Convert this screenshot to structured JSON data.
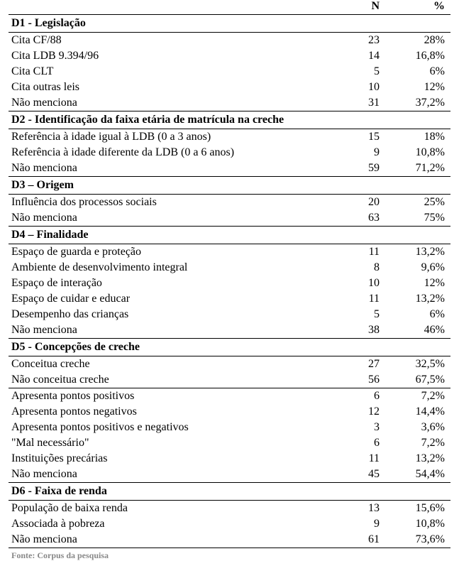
{
  "header": {
    "n_label": "N",
    "pct_label": "%"
  },
  "sections": [
    {
      "title": "D1 - Legislação",
      "groups": [
        {
          "rows": [
            {
              "label": "Cita CF/88",
              "n": "23",
              "pct": "28%"
            },
            {
              "label": "Cita LDB 9.394/96",
              "n": "14",
              "pct": "16,8%"
            },
            {
              "label": "Cita CLT",
              "n": "5",
              "pct": "6%"
            },
            {
              "label": "Cita outras leis",
              "n": "10",
              "pct": "12%"
            },
            {
              "label": "Não menciona",
              "n": "31",
              "pct": "37,2%"
            }
          ]
        }
      ]
    },
    {
      "title": "D2 - Identificação da faixa etária de matrícula na creche",
      "groups": [
        {
          "rows": [
            {
              "label": "Referência à idade igual à LDB (0 a 3 anos)",
              "n": "15",
              "pct": "18%"
            },
            {
              "label": "Referência à idade diferente da LDB (0 a 6 anos)",
              "n": "9",
              "pct": "10,8%"
            },
            {
              "label": "Não menciona",
              "n": "59",
              "pct": "71,2%"
            }
          ]
        }
      ]
    },
    {
      "title": "D3 – Origem",
      "groups": [
        {
          "rows": [
            {
              "label": "Influência dos processos sociais",
              "n": "20",
              "pct": "25%"
            },
            {
              "label": "Não menciona",
              "n": "63",
              "pct": "75%"
            }
          ]
        }
      ]
    },
    {
      "title": "D4 – Finalidade",
      "groups": [
        {
          "rows": [
            {
              "label": "Espaço de guarda e proteção",
              "n": "11",
              "pct": "13,2%"
            },
            {
              "label": "Ambiente de desenvolvimento integral",
              "n": "8",
              "pct": "9,6%"
            },
            {
              "label": "Espaço de interação",
              "n": "10",
              "pct": "12%"
            },
            {
              "label": "Espaço de cuidar e educar",
              "n": "11",
              "pct": "13,2%"
            },
            {
              "label": "Desempenho das crianças",
              "n": "5",
              "pct": "6%"
            },
            {
              "label": "Não menciona",
              "n": "38",
              "pct": "46%"
            }
          ]
        }
      ]
    },
    {
      "title": "D5 - Concepções de creche",
      "groups": [
        {
          "rows": [
            {
              "label": "Conceitua creche",
              "n": "27",
              "pct": "32,5%"
            },
            {
              "label": "Não conceitua creche",
              "n": "56",
              "pct": "67,5%"
            }
          ]
        },
        {
          "rows": [
            {
              "label": "Apresenta pontos positivos",
              "n": "6",
              "pct": "7,2%"
            },
            {
              "label": "Apresenta pontos negativos",
              "n": "12",
              "pct": "14,4%"
            },
            {
              "label": "Apresenta pontos positivos e negativos",
              "n": "3",
              "pct": "3,6%"
            },
            {
              "label": "\"Mal necessário\"",
              "n": "6",
              "pct": "7,2%"
            },
            {
              "label": "Instituições precárias",
              "n": "11",
              "pct": "13,2%"
            },
            {
              "label": "Não menciona",
              "n": "45",
              "pct": "54,4%"
            }
          ]
        }
      ]
    },
    {
      "title": "D6 - Faixa de renda",
      "groups": [
        {
          "rows": [
            {
              "label": "População de baixa renda",
              "n": "13",
              "pct": "15,6%"
            },
            {
              "label": "Associada à pobreza",
              "n": "9",
              "pct": "10,8%"
            },
            {
              "label": "Não menciona",
              "n": "61",
              "pct": "73,6%"
            }
          ]
        }
      ]
    }
  ],
  "footer_text": "Fonte: Corpus da pesquisa"
}
